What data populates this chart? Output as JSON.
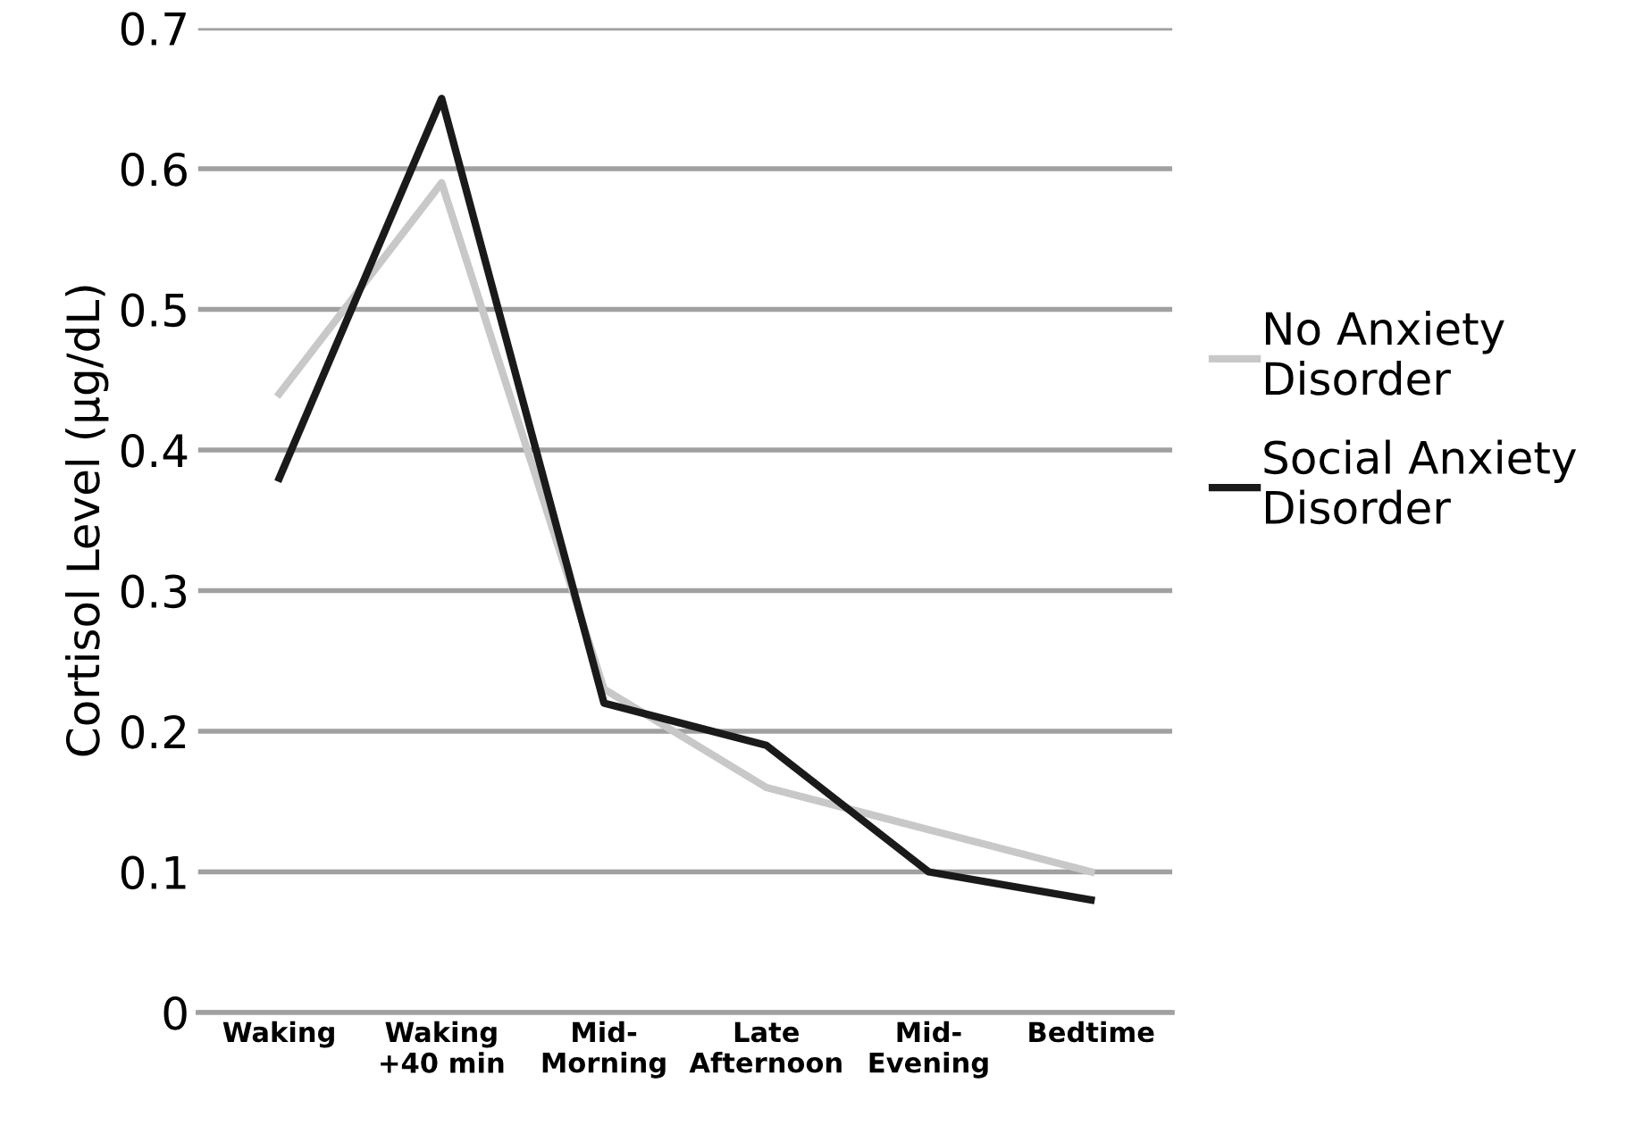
{
  "chart_data": {
    "type": "line",
    "ylabel": "Cortisol Level (µg/dL)",
    "categories": [
      "Waking",
      "Waking\n+40 min",
      "Mid-\nMorning",
      "Late\nAfternoon",
      "Mid-\nEvening",
      "Bedtime"
    ],
    "series": [
      {
        "name": "No Anxiety\nDisorder",
        "color": "#c8c8c8",
        "values": [
          0.44,
          0.59,
          0.23,
          0.16,
          0.13,
          0.1
        ]
      },
      {
        "name": "Social Anxiety\nDisorder",
        "color": "#1a1a1a",
        "values": [
          0.38,
          0.65,
          0.22,
          0.19,
          0.1,
          0.08
        ]
      }
    ],
    "ylim": [
      0,
      0.7
    ],
    "yticks": [
      0,
      0.1,
      0.2,
      0.3,
      0.4,
      0.5,
      0.6,
      0.7
    ],
    "grid": "y",
    "legend": "right",
    "marker": "none",
    "line_style": "solid"
  }
}
